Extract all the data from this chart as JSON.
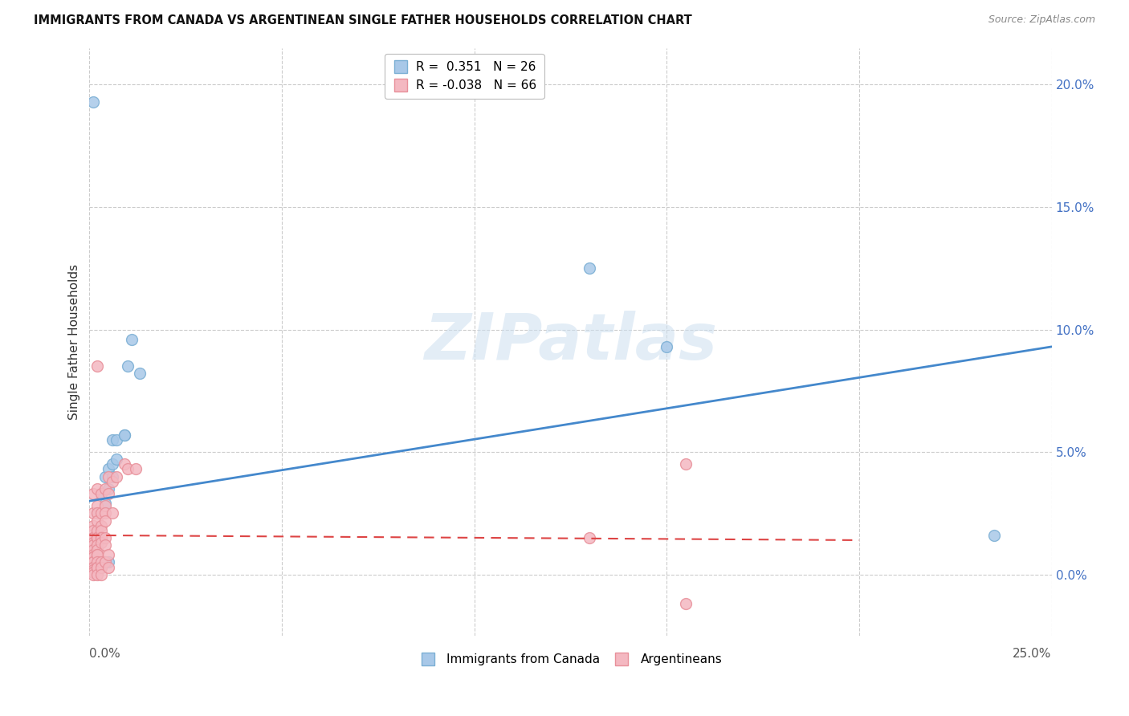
{
  "title": "IMMIGRANTS FROM CANADA VS ARGENTINEAN SINGLE FATHER HOUSEHOLDS CORRELATION CHART",
  "source": "Source: ZipAtlas.com",
  "ylabel": "Single Father Households",
  "ytick_values": [
    0.0,
    0.05,
    0.1,
    0.15,
    0.2
  ],
  "xlim": [
    0.0,
    0.25
  ],
  "ylim": [
    -0.025,
    0.215
  ],
  "legend_blue_r": "0.351",
  "legend_blue_n": "26",
  "legend_pink_r": "-0.038",
  "legend_pink_n": "66",
  "legend_label_blue": "Immigrants from Canada",
  "legend_label_pink": "Argentineans",
  "blue_color": "#a8c8e8",
  "blue_edge_color": "#7bafd4",
  "pink_color": "#f4b8c1",
  "pink_edge_color": "#e8909a",
  "trendline_blue_color": "#4488cc",
  "trendline_pink_color": "#dd4444",
  "watermark": "ZIPatlas",
  "blue_dots": [
    [
      0.001,
      0.193
    ],
    [
      0.002,
      0.025
    ],
    [
      0.002,
      0.005
    ],
    [
      0.002,
      0.018
    ],
    [
      0.003,
      0.003
    ],
    [
      0.003,
      0.015
    ],
    [
      0.003,
      0.033
    ],
    [
      0.004,
      0.005
    ],
    [
      0.004,
      0.029
    ],
    [
      0.004,
      0.04
    ],
    [
      0.005,
      0.035
    ],
    [
      0.005,
      0.043
    ],
    [
      0.005,
      0.005
    ],
    [
      0.006,
      0.04
    ],
    [
      0.006,
      0.045
    ],
    [
      0.006,
      0.055
    ],
    [
      0.007,
      0.055
    ],
    [
      0.007,
      0.047
    ],
    [
      0.009,
      0.057
    ],
    [
      0.009,
      0.057
    ],
    [
      0.01,
      0.085
    ],
    [
      0.011,
      0.096
    ],
    [
      0.013,
      0.082
    ],
    [
      0.13,
      0.125
    ],
    [
      0.15,
      0.093
    ],
    [
      0.235,
      0.016
    ]
  ],
  "pink_dots": [
    [
      0.001,
      0.033
    ],
    [
      0.001,
      0.025
    ],
    [
      0.001,
      0.02
    ],
    [
      0.001,
      0.018
    ],
    [
      0.001,
      0.015
    ],
    [
      0.001,
      0.015
    ],
    [
      0.001,
      0.013
    ],
    [
      0.001,
      0.012
    ],
    [
      0.001,
      0.01
    ],
    [
      0.001,
      0.008
    ],
    [
      0.001,
      0.007
    ],
    [
      0.001,
      0.007
    ],
    [
      0.001,
      0.005
    ],
    [
      0.001,
      0.005
    ],
    [
      0.001,
      0.003
    ],
    [
      0.001,
      0.003
    ],
    [
      0.001,
      0.002
    ],
    [
      0.001,
      0.001
    ],
    [
      0.001,
      0.001
    ],
    [
      0.001,
      0.0
    ],
    [
      0.002,
      0.085
    ],
    [
      0.002,
      0.035
    ],
    [
      0.002,
      0.028
    ],
    [
      0.002,
      0.025
    ],
    [
      0.002,
      0.022
    ],
    [
      0.002,
      0.018
    ],
    [
      0.002,
      0.015
    ],
    [
      0.002,
      0.015
    ],
    [
      0.002,
      0.012
    ],
    [
      0.002,
      0.01
    ],
    [
      0.002,
      0.008
    ],
    [
      0.002,
      0.008
    ],
    [
      0.002,
      0.005
    ],
    [
      0.002,
      0.003
    ],
    [
      0.002,
      0.003
    ],
    [
      0.002,
      0.0
    ],
    [
      0.003,
      0.033
    ],
    [
      0.003,
      0.025
    ],
    [
      0.003,
      0.02
    ],
    [
      0.003,
      0.018
    ],
    [
      0.003,
      0.015
    ],
    [
      0.003,
      0.015
    ],
    [
      0.003,
      0.013
    ],
    [
      0.003,
      0.005
    ],
    [
      0.003,
      0.003
    ],
    [
      0.003,
      0.0
    ],
    [
      0.004,
      0.035
    ],
    [
      0.004,
      0.028
    ],
    [
      0.004,
      0.025
    ],
    [
      0.004,
      0.022
    ],
    [
      0.004,
      0.015
    ],
    [
      0.004,
      0.012
    ],
    [
      0.004,
      0.005
    ],
    [
      0.005,
      0.04
    ],
    [
      0.005,
      0.033
    ],
    [
      0.005,
      0.008
    ],
    [
      0.005,
      0.003
    ],
    [
      0.006,
      0.038
    ],
    [
      0.006,
      0.025
    ],
    [
      0.007,
      0.04
    ],
    [
      0.009,
      0.045
    ],
    [
      0.01,
      0.043
    ],
    [
      0.012,
      0.043
    ],
    [
      0.13,
      0.015
    ],
    [
      0.155,
      0.045
    ],
    [
      0.155,
      -0.012
    ]
  ],
  "blue_trend_x": [
    0.0,
    0.25
  ],
  "blue_trend_y": [
    0.03,
    0.093
  ],
  "pink_trend_x": [
    0.0,
    0.2
  ],
  "pink_trend_y": [
    0.016,
    0.014
  ]
}
